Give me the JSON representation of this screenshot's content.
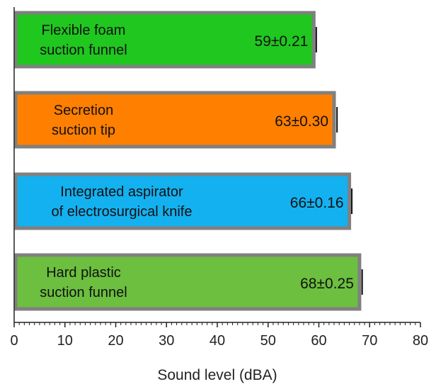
{
  "chart_data": {
    "type": "bar",
    "orientation": "horizontal",
    "categories": [
      "Flexible foam suction funnel",
      "Secretion suction tip",
      "Integrated aspirator of electrosurgical knife",
      "Hard plastic suction funnel"
    ],
    "category_lines": [
      [
        "Flexible foam",
        "suction funnel"
      ],
      [
        "Secretion",
        "suction tip"
      ],
      [
        "Integrated aspirator",
        "of electrosurgical knife"
      ],
      [
        "Hard plastic",
        "suction funnel"
      ]
    ],
    "values": [
      59,
      63,
      66,
      68
    ],
    "errors": [
      0.21,
      0.3,
      0.16,
      0.25
    ],
    "value_labels": [
      "59±0.21",
      "63±0.30",
      "66±0.16",
      "68±0.25"
    ],
    "colors": [
      "#1fc71f",
      "#ff7f00",
      "#14b1f0",
      "#6cbf3f"
    ],
    "border_color": "#808080",
    "xlabel": "Sound level (dBA)",
    "xlim": [
      0,
      80
    ],
    "xticks": [
      0,
      10,
      20,
      30,
      40,
      50,
      60,
      70,
      80
    ],
    "xtick_labels": [
      "0",
      "10",
      "20",
      "30",
      "40",
      "50",
      "60",
      "70",
      "80"
    ],
    "grid": false,
    "legend": "none"
  }
}
